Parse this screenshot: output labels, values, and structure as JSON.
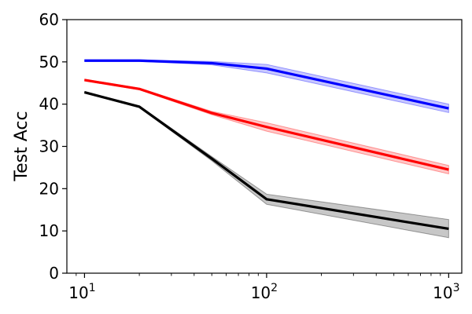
{
  "chart_data": {
    "type": "line",
    "title": "",
    "xlabel": "",
    "ylabel": "Test Acc",
    "xscale": "log",
    "xlim": [
      8,
      1180
    ],
    "ylim": [
      0,
      60
    ],
    "x_ticks": [
      10,
      100,
      1000
    ],
    "x_tick_labels": [
      {
        "base": "10",
        "exp": "1"
      },
      {
        "base": "10",
        "exp": "2"
      },
      {
        "base": "10",
        "exp": "3"
      }
    ],
    "y_ticks": [
      0,
      10,
      20,
      30,
      40,
      50,
      60
    ],
    "y_tick_labels": [
      "0",
      "10",
      "20",
      "30",
      "40",
      "50",
      "60"
    ],
    "grid": false,
    "legend": "none",
    "x": [
      10,
      20,
      50,
      100,
      1000
    ],
    "series": [
      {
        "color": "#0000ff",
        "fill": "#9999ff",
        "values": [
          50.3,
          50.3,
          49.7,
          48.4,
          39.0
        ],
        "lower": [
          50.1,
          50.1,
          49.3,
          47.4,
          38.0
        ],
        "upper": [
          50.5,
          50.5,
          50.1,
          49.4,
          40.0
        ]
      },
      {
        "color": "#ff0000",
        "fill": "#ff9999",
        "values": [
          45.7,
          43.6,
          37.9,
          34.6,
          24.5
        ],
        "lower": [
          45.5,
          43.4,
          37.5,
          33.6,
          23.5
        ],
        "upper": [
          45.9,
          43.8,
          38.3,
          35.6,
          25.5
        ]
      },
      {
        "color": "#000000",
        "fill": "#999999",
        "values": [
          42.8,
          39.4,
          27.1,
          17.5,
          10.5
        ],
        "lower": [
          42.6,
          39.2,
          26.6,
          16.3,
          8.4
        ],
        "upper": [
          43.0,
          39.6,
          27.6,
          18.7,
          12.7
        ]
      }
    ]
  }
}
